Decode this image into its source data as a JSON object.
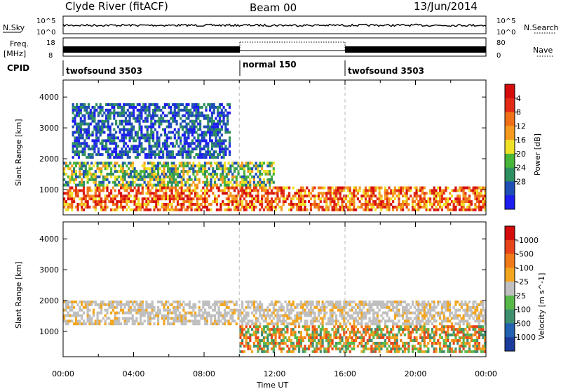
{
  "header": {
    "station": "Clyde River (fitACF)",
    "beam": "Beam 00",
    "date": "13/Jun/2014"
  },
  "strip_labels": {
    "nsky": "N.Sky",
    "nsearch": "N.Search",
    "freq_top": "Freq.",
    "freq_unit": "[MHz]",
    "nave": "Nave",
    "cpid": "CPID"
  },
  "strip_ticks": {
    "noise_left_top": "10^5",
    "noise_left_bottom": "10^0",
    "noise_right_top": "10^5",
    "noise_right_bottom": "10^0",
    "freq_top": "18",
    "freq_bottom": "8",
    "nave_top": "80",
    "nave_bottom": "0"
  },
  "cpid_segments": [
    {
      "name": "twofsound 3503",
      "start_hour": 0,
      "end_hour": 10
    },
    {
      "name": "normal 150",
      "start_hour": 10,
      "end_hour": 16
    },
    {
      "name": "twofsound 3503",
      "start_hour": 16,
      "end_hour": 24
    }
  ],
  "chart_data": [
    {
      "type": "heatmap",
      "parameter": "power",
      "ylabel": "Slant Range [km]",
      "xlabel": "",
      "x_ticks": [
        "00:00",
        "04:00",
        "08:00",
        "12:00",
        "16:00",
        "20:00",
        "00:00"
      ],
      "x_range_hours": [
        0,
        24
      ],
      "y_ticks": [
        "1000",
        "2000",
        "3000",
        "4000"
      ],
      "y_tick_values": [
        1000,
        2000,
        3000,
        4000
      ],
      "ylim": [
        180,
        4550
      ],
      "colorbar": {
        "label": "Power [dB]",
        "tick_labels": [
          "4",
          "8",
          "12",
          "16",
          "20",
          "24",
          "28"
        ],
        "range": [
          0,
          30
        ],
        "colors": [
          "#1d1df0",
          "#1f4fb4",
          "#2e8f60",
          "#49b53a",
          "#f0e028",
          "#f49a1f",
          "#f07018",
          "#e22a16",
          "#d40c0c"
        ]
      },
      "bands": [
        {
          "range_km": [
            300,
            1100
          ],
          "start_hour": 0,
          "end_hour": 24,
          "level": "high"
        },
        {
          "range_km": [
            1100,
            1900
          ],
          "start_hour": 0,
          "end_hour": 12,
          "level": "medium"
        },
        {
          "range_km": [
            2000,
            3800
          ],
          "start_hour": 0.5,
          "end_hour": 9.5,
          "level": "low"
        }
      ]
    },
    {
      "type": "heatmap",
      "parameter": "velocity",
      "ylabel": "Slant Range [km]",
      "xlabel": "Time UT",
      "x_ticks": [
        "00:00",
        "04:00",
        "08:00",
        "12:00",
        "16:00",
        "20:00",
        "00:00"
      ],
      "x_range_hours": [
        0,
        24
      ],
      "y_ticks": [
        "1000",
        "2000",
        "3000",
        "4000"
      ],
      "y_tick_values": [
        1000,
        2000,
        3000,
        4000
      ],
      "ylim": [
        180,
        4550
      ],
      "colorbar": {
        "label": "Velocity [m s^-1]",
        "tick_labels": [
          "1000",
          "500",
          "100",
          "25",
          "-25",
          "-100",
          "-500",
          "-1000"
        ],
        "colors": [
          "#1c3c9c",
          "#2262b0",
          "#3f8f6f",
          "#58b84a",
          "#bfbfbf",
          "#f2a51f",
          "#f07a18",
          "#e8441a",
          "#d40c0c"
        ]
      },
      "bands": [
        {
          "range_km": [
            300,
            1200
          ],
          "start_hour": 10,
          "end_hour": 24,
          "level": "mixed"
        },
        {
          "range_km": [
            1200,
            2000
          ],
          "start_hour": 0,
          "end_hour": 24,
          "level": "ground-scatter"
        }
      ]
    }
  ]
}
